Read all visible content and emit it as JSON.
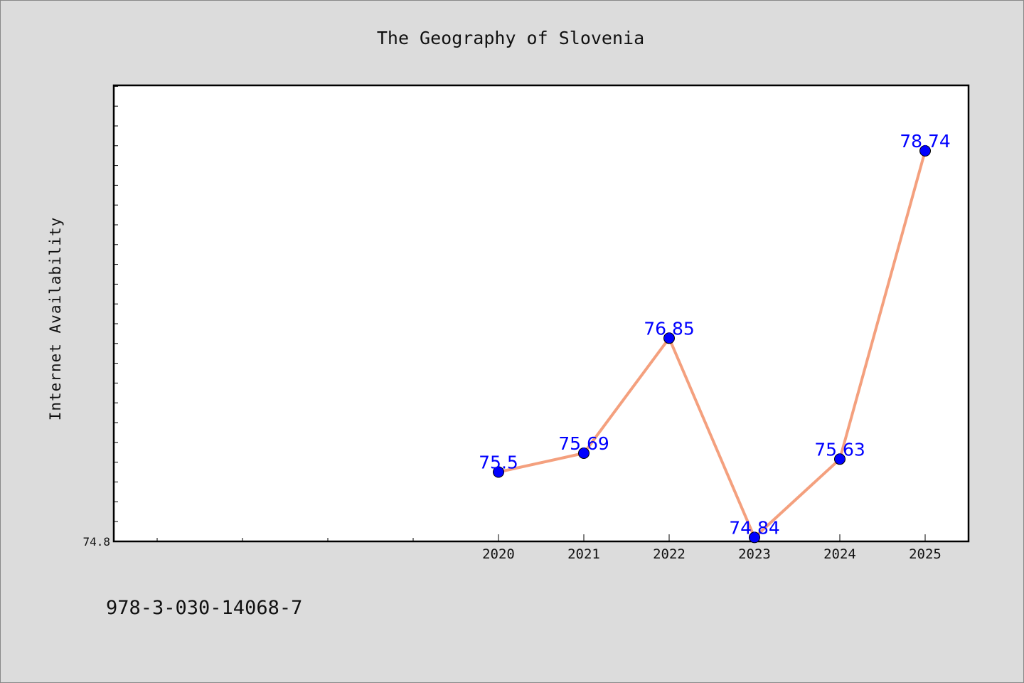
{
  "chart_data": {
    "type": "line",
    "title": "The Geography of Slovenia",
    "xlabel": "",
    "ylabel": "Internet Availability",
    "categories": [
      "2020",
      "2021",
      "2022",
      "2023",
      "2024",
      "2025"
    ],
    "series": [
      {
        "values": [
          75.5,
          75.69,
          76.85,
          74.84,
          75.63,
          78.74
        ],
        "labels": [
          "75.5",
          "75.69",
          "76.85",
          "74.84",
          "75.63",
          "78.74"
        ]
      }
    ],
    "ylim": [
      74.8,
      79.4
    ],
    "yticks": [
      "74.8"
    ],
    "grid": false,
    "line_color": "#f4a07e",
    "marker_color": "#0000ff",
    "label_color": "#0000ff"
  },
  "footer": {
    "isbn": "978-3-030-14068-7"
  }
}
